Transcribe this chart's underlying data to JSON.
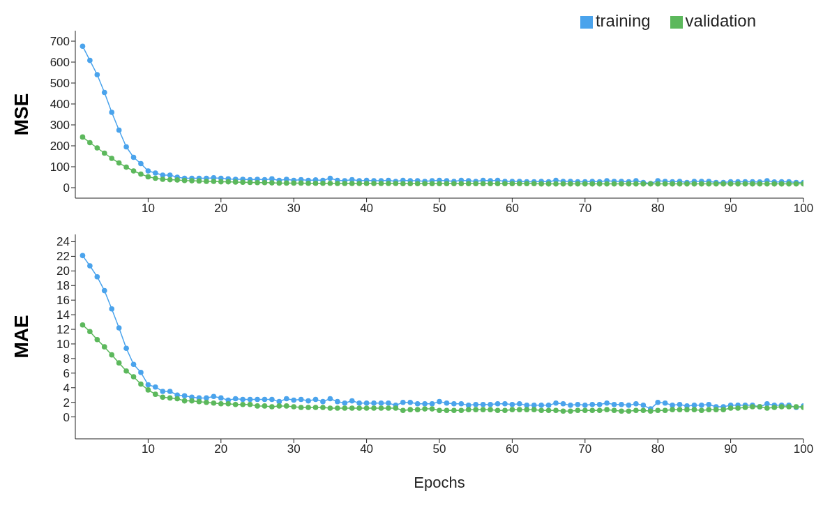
{
  "chart_data": [
    {
      "type": "line",
      "ylabel": "MSE",
      "legend": "top right",
      "marker": "circle",
      "grid": false,
      "x": [
        1,
        2,
        3,
        4,
        5,
        6,
        7,
        8,
        9,
        10,
        11,
        12,
        13,
        14,
        15,
        16,
        17,
        18,
        19,
        20,
        21,
        22,
        23,
        24,
        25,
        26,
        27,
        28,
        29,
        30,
        31,
        32,
        33,
        34,
        35,
        36,
        37,
        38,
        39,
        40,
        41,
        42,
        43,
        44,
        45,
        46,
        47,
        48,
        49,
        50,
        51,
        52,
        53,
        54,
        55,
        56,
        57,
        58,
        59,
        60,
        61,
        62,
        63,
        64,
        65,
        66,
        67,
        68,
        69,
        70,
        71,
        72,
        73,
        74,
        75,
        76,
        77,
        78,
        79,
        80,
        81,
        82,
        83,
        84,
        85,
        86,
        87,
        88,
        89,
        90,
        91,
        92,
        93,
        94,
        95,
        96,
        97,
        98,
        99,
        100
      ],
      "xlim": [
        0,
        100
      ],
      "xticks": [
        10,
        20,
        30,
        40,
        50,
        60,
        70,
        80,
        90,
        100
      ],
      "ylim": [
        -50,
        750
      ],
      "yticks": [
        0,
        100,
        200,
        300,
        400,
        500,
        600,
        700
      ],
      "series": [
        {
          "name": "training",
          "color": "#4aa3ec",
          "values": [
            676,
            608,
            540,
            455,
            360,
            275,
            195,
            145,
            115,
            80,
            70,
            60,
            60,
            50,
            45,
            45,
            45,
            45,
            47,
            45,
            42,
            40,
            40,
            38,
            40,
            38,
            42,
            35,
            40,
            35,
            38,
            35,
            37,
            35,
            45,
            35,
            33,
            38,
            33,
            35,
            33,
            33,
            35,
            30,
            35,
            33,
            33,
            30,
            33,
            35,
            33,
            30,
            35,
            33,
            30,
            35,
            33,
            35,
            30,
            30,
            30,
            28,
            28,
            30,
            28,
            35,
            30,
            30,
            28,
            28,
            30,
            28,
            33,
            30,
            30,
            28,
            33,
            25,
            20,
            33,
            30,
            28,
            30,
            25,
            30,
            30,
            30,
            25,
            25,
            28,
            28,
            28,
            28,
            27,
            33,
            27,
            28,
            28,
            25,
            25
          ]
        },
        {
          "name": "validation",
          "color": "#5cb85c",
          "values": [
            242,
            215,
            190,
            165,
            140,
            118,
            98,
            80,
            65,
            52,
            45,
            40,
            38,
            37,
            34,
            33,
            32,
            30,
            30,
            28,
            28,
            27,
            26,
            25,
            24,
            24,
            23,
            22,
            22,
            22,
            22,
            21,
            21,
            21,
            21,
            20,
            20,
            20,
            20,
            20,
            20,
            20,
            20,
            20,
            19,
            19,
            19,
            19,
            19,
            19,
            19,
            19,
            19,
            19,
            19,
            19,
            19,
            19,
            19,
            19,
            19,
            19,
            19,
            18,
            18,
            18,
            18,
            18,
            18,
            18,
            18,
            18,
            18,
            18,
            18,
            18,
            18,
            18,
            18,
            18,
            18,
            18,
            18,
            18,
            18,
            18,
            18,
            18,
            18,
            18,
            18,
            18,
            18,
            18,
            18,
            18,
            18,
            18,
            18,
            18
          ]
        }
      ]
    },
    {
      "type": "line",
      "ylabel": "MAE",
      "xlabel": "Epochs",
      "marker": "circle",
      "grid": false,
      "x": [
        1,
        2,
        3,
        4,
        5,
        6,
        7,
        8,
        9,
        10,
        11,
        12,
        13,
        14,
        15,
        16,
        17,
        18,
        19,
        20,
        21,
        22,
        23,
        24,
        25,
        26,
        27,
        28,
        29,
        30,
        31,
        32,
        33,
        34,
        35,
        36,
        37,
        38,
        39,
        40,
        41,
        42,
        43,
        44,
        45,
        46,
        47,
        48,
        49,
        50,
        51,
        52,
        53,
        54,
        55,
        56,
        57,
        58,
        59,
        60,
        61,
        62,
        63,
        64,
        65,
        66,
        67,
        68,
        69,
        70,
        71,
        72,
        73,
        74,
        75,
        76,
        77,
        78,
        79,
        80,
        81,
        82,
        83,
        84,
        85,
        86,
        87,
        88,
        89,
        90,
        91,
        92,
        93,
        94,
        95,
        96,
        97,
        98,
        99,
        100
      ],
      "xlim": [
        0,
        100
      ],
      "xticks": [
        10,
        20,
        30,
        40,
        50,
        60,
        70,
        80,
        90,
        100
      ],
      "ylim": [
        -3,
        25
      ],
      "yticks": [
        0,
        2,
        4,
        6,
        8,
        10,
        12,
        14,
        16,
        18,
        20,
        22,
        24
      ],
      "series": [
        {
          "color": "#4aa3ec",
          "values": [
            22.1,
            20.7,
            19.2,
            17.3,
            14.8,
            12.2,
            9.4,
            7.2,
            6.1,
            4.4,
            4.1,
            3.5,
            3.5,
            3.0,
            2.9,
            2.7,
            2.6,
            2.6,
            2.8,
            2.6,
            2.3,
            2.5,
            2.4,
            2.4,
            2.4,
            2.4,
            2.4,
            2.1,
            2.5,
            2.3,
            2.4,
            2.2,
            2.4,
            2.1,
            2.5,
            2.1,
            1.9,
            2.2,
            1.9,
            1.9,
            1.9,
            1.9,
            1.9,
            1.6,
            2.0,
            2.0,
            1.8,
            1.8,
            1.8,
            2.1,
            1.9,
            1.8,
            1.8,
            1.6,
            1.7,
            1.7,
            1.7,
            1.8,
            1.8,
            1.7,
            1.8,
            1.6,
            1.6,
            1.6,
            1.6,
            1.9,
            1.8,
            1.6,
            1.7,
            1.6,
            1.7,
            1.7,
            1.9,
            1.7,
            1.7,
            1.6,
            1.8,
            1.6,
            1.1,
            2.0,
            1.9,
            1.6,
            1.7,
            1.5,
            1.6,
            1.6,
            1.7,
            1.4,
            1.4,
            1.6,
            1.6,
            1.6,
            1.6,
            1.4,
            1.8,
            1.6,
            1.6,
            1.6,
            1.3,
            1.5
          ]
        },
        {
          "color": "#5cb85c",
          "values": [
            12.6,
            11.7,
            10.6,
            9.6,
            8.5,
            7.4,
            6.3,
            5.5,
            4.5,
            3.7,
            3.1,
            2.7,
            2.6,
            2.5,
            2.2,
            2.2,
            2.1,
            2.0,
            1.9,
            1.8,
            1.8,
            1.7,
            1.7,
            1.7,
            1.5,
            1.5,
            1.4,
            1.5,
            1.5,
            1.4,
            1.3,
            1.3,
            1.3,
            1.3,
            1.2,
            1.2,
            1.2,
            1.2,
            1.2,
            1.2,
            1.2,
            1.2,
            1.2,
            1.2,
            0.9,
            1.0,
            1.0,
            1.1,
            1.1,
            0.9,
            0.9,
            0.9,
            0.9,
            1.0,
            1.0,
            1.0,
            1.0,
            0.9,
            0.9,
            1.0,
            1.0,
            1.0,
            1.0,
            0.9,
            0.9,
            0.9,
            0.8,
            0.8,
            0.9,
            0.9,
            0.9,
            0.9,
            1.0,
            0.9,
            0.8,
            0.8,
            0.9,
            0.9,
            0.8,
            0.9,
            0.9,
            1.0,
            1.0,
            1.0,
            1.0,
            0.9,
            1.0,
            1.0,
            1.0,
            1.2,
            1.2,
            1.3,
            1.4,
            1.4,
            1.2,
            1.3,
            1.4,
            1.4,
            1.4,
            1.3
          ]
        }
      ]
    }
  ]
}
